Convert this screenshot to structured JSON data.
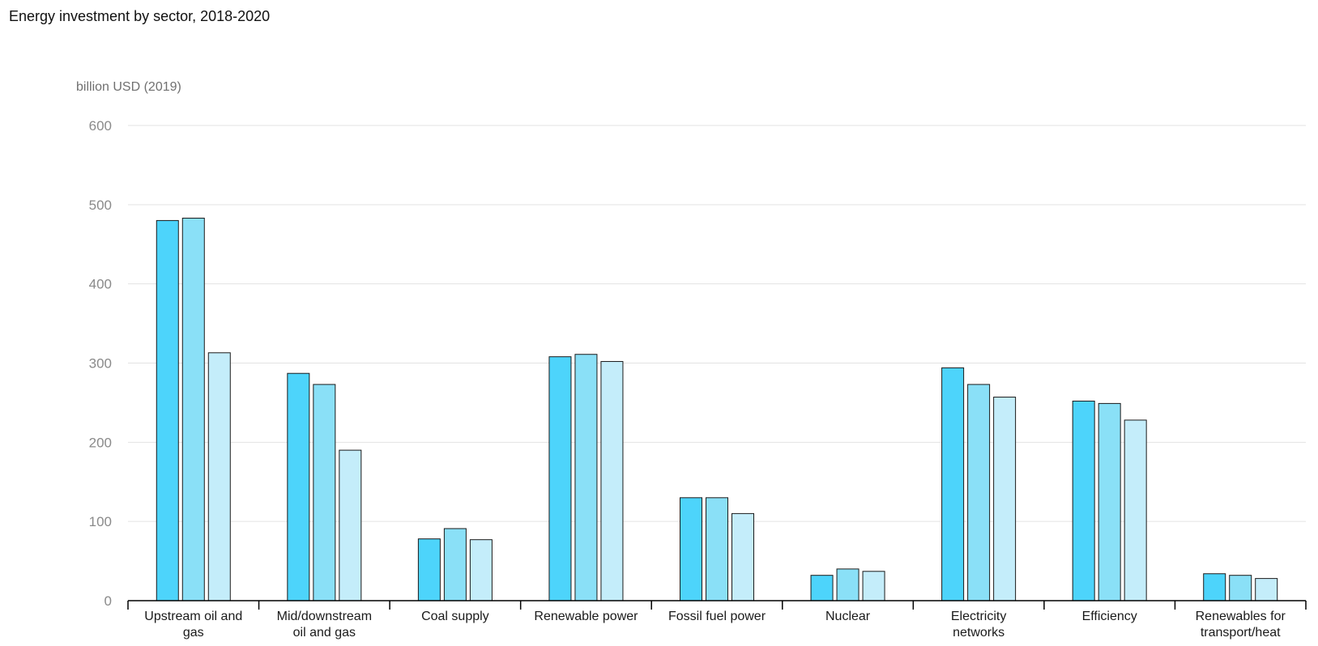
{
  "title": "Energy investment by sector, 2018-2020",
  "chart_data": {
    "type": "bar",
    "title": "Energy investment by sector, 2018-2020",
    "ylabel": "billion USD (2019)",
    "xlabel": "",
    "ylim": [
      0,
      600
    ],
    "yticks": [
      0,
      100,
      200,
      300,
      400,
      500,
      600
    ],
    "grid": true,
    "legend": "none",
    "categories": [
      [
        "Upstream oil and",
        "gas"
      ],
      [
        "Mid/downstream",
        "oil and gas"
      ],
      [
        "Coal supply"
      ],
      [
        "Renewable power"
      ],
      [
        "Fossil fuel power"
      ],
      [
        "Nuclear"
      ],
      [
        "Electricity",
        "networks"
      ],
      [
        "Efficiency"
      ],
      [
        "Renewables for",
        "transport/heat"
      ]
    ],
    "series": [
      {
        "color": "#4dd4fb",
        "values": [
          480,
          287,
          78,
          308,
          130,
          32,
          294,
          252,
          34
        ]
      },
      {
        "color": "#8ae0f7",
        "values": [
          483,
          273,
          91,
          311,
          130,
          40,
          273,
          249,
          32
        ]
      },
      {
        "color": "#c4edfa",
        "values": [
          313,
          190,
          77,
          302,
          110,
          37,
          257,
          228,
          28
        ]
      }
    ]
  }
}
